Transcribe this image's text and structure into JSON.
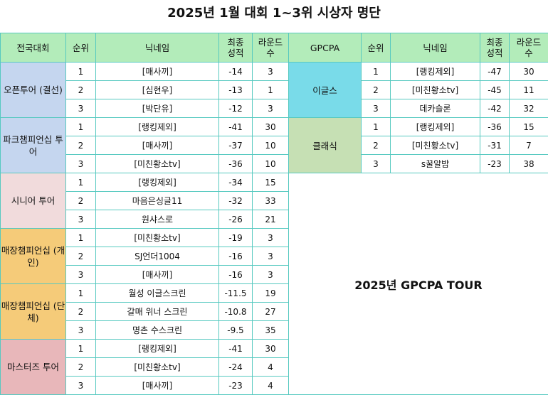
{
  "title": "2025년 1월 대회 1~3위 시상자 명단",
  "headers": {
    "event": "전국대회",
    "rank": "순위",
    "nickname": "닉네임",
    "score": "최종\n성적",
    "rounds": "라운드\n수",
    "gpcpa": "GPCPA",
    "rank2": "순위",
    "nickname2": "닉네임",
    "score2": "최종\n성적",
    "rounds2": "라운드\n수"
  },
  "tours": [
    {
      "name": "오픈투어\n(결선)",
      "color": "#c5d6ef",
      "rows": [
        {
          "rank": "1",
          "nick": "[매사끼]",
          "score": "-14",
          "rounds": "3"
        },
        {
          "rank": "2",
          "nick": "[심현우]",
          "score": "-13",
          "rounds": "1"
        },
        {
          "rank": "3",
          "nick": "[박단유]",
          "score": "-12",
          "rounds": "3"
        }
      ]
    },
    {
      "name": "파크챔피언십\n투어",
      "color": "#c5d6ef",
      "rows": [
        {
          "rank": "1",
          "nick": "[랭킹제외]",
          "score": "-41",
          "rounds": "30"
        },
        {
          "rank": "2",
          "nick": "[매사끼]",
          "score": "-37",
          "rounds": "10"
        },
        {
          "rank": "3",
          "nick": "[미친황소tv]",
          "score": "-36",
          "rounds": "10"
        }
      ]
    },
    {
      "name": "시니어\n투어",
      "color": "#f1dbdc",
      "rows": [
        {
          "rank": "1",
          "nick": "[랭킹제외]",
          "score": "-34",
          "rounds": "15"
        },
        {
          "rank": "2",
          "nick": "마음은싱글11",
          "score": "-32",
          "rounds": "33"
        },
        {
          "rank": "3",
          "nick": "원샤스로",
          "score": "-26",
          "rounds": "21"
        }
      ]
    },
    {
      "name": "매장챔피언십\n(개인)",
      "color": "#f5cb79",
      "rows": [
        {
          "rank": "1",
          "nick": "[미친황소tv]",
          "score": "-19",
          "rounds": "3"
        },
        {
          "rank": "2",
          "nick": "SJ언더1004",
          "score": "-16",
          "rounds": "3"
        },
        {
          "rank": "3",
          "nick": "[매사끼]",
          "score": "-16",
          "rounds": "3"
        }
      ]
    },
    {
      "name": "매장챔피언십\n(단체)",
      "color": "#f5cb79",
      "rows": [
        {
          "rank": "1",
          "nick": "월성 이글스크린",
          "score": "-11.5",
          "rounds": "19"
        },
        {
          "rank": "2",
          "nick": "갈매 위너 스크린",
          "score": "-10.8",
          "rounds": "27"
        },
        {
          "rank": "3",
          "nick": "명촌 수스크린",
          "score": "-9.5",
          "rounds": "35"
        }
      ]
    },
    {
      "name": "마스터즈\n투어",
      "color": "#e8b7ba",
      "rows": [
        {
          "rank": "1",
          "nick": "[랭킹제외]",
          "score": "-41",
          "rounds": "30"
        },
        {
          "rank": "2",
          "nick": "[미친황소tv]",
          "score": "-24",
          "rounds": "4"
        },
        {
          "rank": "3",
          "nick": "[매사끼]",
          "score": "-23",
          "rounds": "4"
        }
      ]
    }
  ],
  "gpcpa": [
    {
      "name": "이글스",
      "color": "#79dbe9",
      "rows": [
        {
          "rank": "1",
          "nick": "[랭킹제외]",
          "score": "-47",
          "rounds": "30"
        },
        {
          "rank": "2",
          "nick": "[미친황소tv]",
          "score": "-45",
          "rounds": "11"
        },
        {
          "rank": "3",
          "nick": "데카슬론",
          "score": "-42",
          "rounds": "32"
        }
      ]
    },
    {
      "name": "클래식",
      "color": "#c6e0b4",
      "rows": [
        {
          "rank": "1",
          "nick": "[랭킹제외]",
          "score": "-36",
          "rounds": "15"
        },
        {
          "rank": "2",
          "nick": "[미친황소tv]",
          "score": "-31",
          "rounds": "7"
        },
        {
          "rank": "3",
          "nick": "s꿀알밤",
          "score": "-23",
          "rounds": "38"
        }
      ]
    }
  ],
  "banner": "2025년 GPCPA TOUR"
}
